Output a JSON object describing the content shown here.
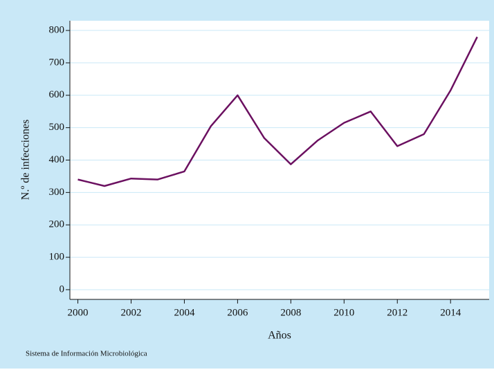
{
  "chart_data": {
    "type": "line",
    "x": [
      2000,
      2001,
      2002,
      2003,
      2004,
      2005,
      2006,
      2007,
      2008,
      2009,
      2010,
      2011,
      2012,
      2013,
      2014,
      2015
    ],
    "series": [
      {
        "name": "N.º de infecciones",
        "color": "#6b1060",
        "values": [
          340,
          320,
          343,
          340,
          365,
          505,
          600,
          468,
          387,
          460,
          515,
          550,
          443,
          480,
          615,
          780
        ]
      }
    ],
    "xlabel": "Años",
    "ylabel": "N.º de infecciones",
    "xlim": [
      1999.7,
      2015.45
    ],
    "xticks": [
      2000,
      2002,
      2004,
      2006,
      2008,
      2010,
      2012,
      2014
    ],
    "ylim": [
      -30,
      830
    ],
    "yticks": [
      0,
      100,
      200,
      300,
      400,
      500,
      600,
      700,
      800
    ],
    "grid": true,
    "source": "Sistema de Información Microbiológica"
  }
}
